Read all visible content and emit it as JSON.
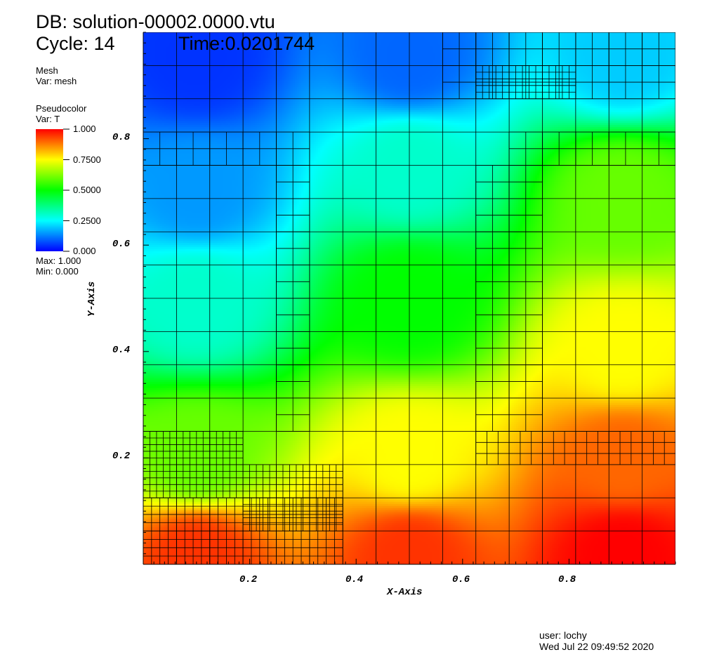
{
  "header": {
    "db_line": "DB: solution-00002.0000.vtu",
    "cycle_line": "Cycle: 14",
    "time_line": "Time:0.0201744"
  },
  "legend": {
    "mesh": {
      "title": "Mesh",
      "var": "Var: mesh"
    },
    "pseudocolor": {
      "title": "Pseudocolor",
      "var": "Var: T"
    },
    "ticks": [
      "1.000",
      "0.7500",
      "0.5000",
      "0.2500",
      "0.000"
    ],
    "max": "Max:  1.000",
    "min": "Min:  0.000",
    "colors": [
      "#0000ff",
      "#00ffff",
      "#00ff00",
      "#ffff00",
      "#ff0000"
    ]
  },
  "footer": {
    "user": "user: lochy",
    "date": "Wed Jul 22 09:49:52 2020"
  },
  "chart_data": {
    "type": "heatmap",
    "xlabel": "X-Axis",
    "ylabel": "Y-Axis",
    "xlim": [
      0,
      1
    ],
    "ylim": [
      0,
      1
    ],
    "x_ticks": [
      "0.2",
      "0.4",
      "0.6",
      "0.8"
    ],
    "y_ticks": [
      "0.2",
      "0.4",
      "0.6",
      "0.8"
    ],
    "x_tick_values": [
      0.2,
      0.4,
      0.6,
      0.8
    ],
    "y_tick_values": [
      0.2,
      0.4,
      0.6,
      0.8
    ],
    "variable": "T",
    "value_range": [
      0,
      1
    ],
    "colormap": "hot-desaturated rainbow (blue-cyan-green-yellow-red)",
    "field_samples": [
      {
        "x": 0.1,
        "y": 0.95,
        "T": 0.05
      },
      {
        "x": 0.5,
        "y": 0.95,
        "T": 0.1
      },
      {
        "x": 0.9,
        "y": 0.95,
        "T": 0.2
      },
      {
        "x": 0.1,
        "y": 0.7,
        "T": 0.15
      },
      {
        "x": 0.5,
        "y": 0.75,
        "T": 0.3
      },
      {
        "x": 0.9,
        "y": 0.7,
        "T": 0.6
      },
      {
        "x": 0.1,
        "y": 0.5,
        "T": 0.3
      },
      {
        "x": 0.5,
        "y": 0.5,
        "T": 0.5
      },
      {
        "x": 0.9,
        "y": 0.4,
        "T": 0.75
      },
      {
        "x": 0.1,
        "y": 0.2,
        "T": 0.6
      },
      {
        "x": 0.5,
        "y": 0.2,
        "T": 0.75
      },
      {
        "x": 0.9,
        "y": 0.2,
        "T": 0.9
      },
      {
        "x": 0.1,
        "y": 0.02,
        "T": 0.95
      },
      {
        "x": 0.5,
        "y": 0.02,
        "T": 0.95
      },
      {
        "x": 0.9,
        "y": 0.02,
        "T": 1.0
      }
    ],
    "grid": true
  }
}
